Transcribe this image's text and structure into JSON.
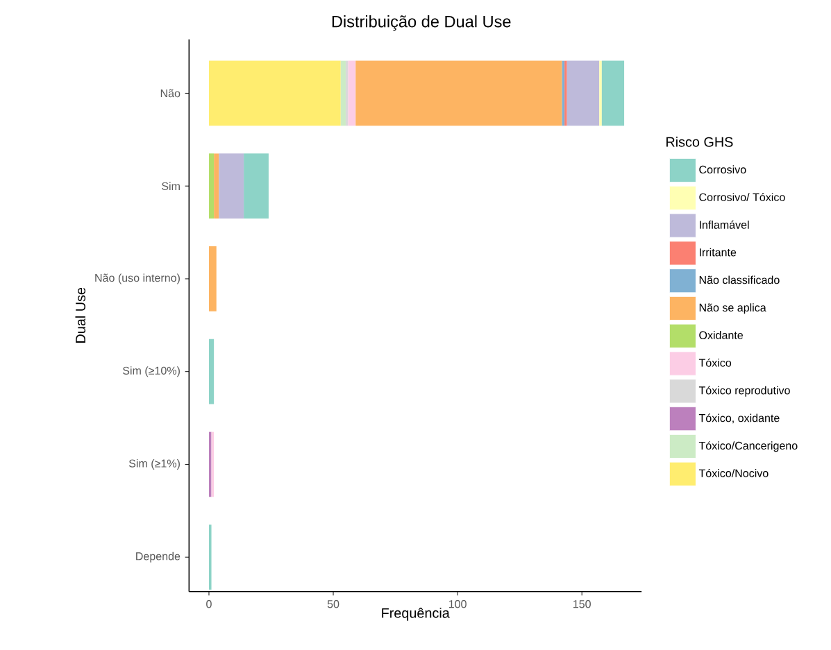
{
  "chart_data": {
    "type": "bar",
    "orientation": "horizontal",
    "stacked": true,
    "title": "Distribuição de Dual Use",
    "xlabel": "Frequência",
    "ylabel": "Dual Use",
    "legend_title": "Risco GHS",
    "legend": "right",
    "grid": false,
    "categories": [
      "Não",
      "Sim",
      "Não (uso interno)",
      "Sim (≥10%)",
      "Sim (≥1%)",
      "Depende"
    ],
    "xlim": [
      -8,
      174
    ],
    "xticks": [
      0,
      50,
      100,
      150
    ],
    "series": [
      {
        "name": "Tóxico/Nocivo",
        "color": "#ffed6f",
        "values": [
          53,
          null,
          null,
          null,
          null,
          null
        ]
      },
      {
        "name": "Tóxico/Cancerigeno",
        "color": "#ccebc5",
        "values": [
          2,
          null,
          null,
          null,
          null,
          null
        ]
      },
      {
        "name": "Tóxico, oxidante",
        "color": "#bc80bd",
        "values": [
          null,
          null,
          null,
          null,
          1,
          null
        ]
      },
      {
        "name": "Tóxico reprodutivo",
        "color": "#d9d9d9",
        "values": [
          1,
          null,
          null,
          null,
          null,
          null
        ]
      },
      {
        "name": "Tóxico",
        "color": "#fccde5",
        "values": [
          3,
          null,
          null,
          null,
          1,
          null
        ]
      },
      {
        "name": "Oxidante",
        "color": "#b3de69",
        "values": [
          null,
          2,
          null,
          null,
          null,
          null
        ]
      },
      {
        "name": "Não se aplica",
        "color": "#fdb462",
        "values": [
          83,
          2,
          3,
          null,
          null,
          null
        ]
      },
      {
        "name": "Não classificado",
        "color": "#80b1d3",
        "values": [
          1,
          null,
          null,
          null,
          null,
          null
        ]
      },
      {
        "name": "Irritante",
        "color": "#fb8072",
        "values": [
          1,
          null,
          null,
          null,
          null,
          null
        ]
      },
      {
        "name": "Inflamável",
        "color": "#bebada",
        "values": [
          13,
          10,
          null,
          null,
          null,
          null
        ]
      },
      {
        "name": "Corrosivo/ Tóxico",
        "color": "#ffffb3",
        "values": [
          1,
          null,
          null,
          null,
          null,
          null
        ]
      },
      {
        "name": "Corrosivo",
        "color": "#8dd3c7",
        "values": [
          9,
          10,
          null,
          2,
          null,
          1
        ]
      }
    ]
  }
}
